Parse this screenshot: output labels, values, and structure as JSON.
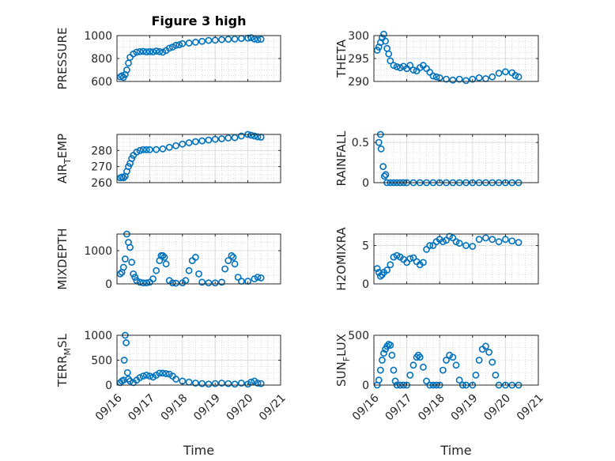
{
  "figure": {
    "title": "Figure 3 high",
    "marker_color": "#0072BD"
  },
  "chart_data": [
    {
      "type": "scatter",
      "name": "pressure",
      "title": "Figure 3 high",
      "ylabel_parts": [
        {
          "t": "PRESSURE"
        }
      ],
      "xlabel": "",
      "xlim": [
        0,
        5
      ],
      "ylim": [
        600,
        1000
      ],
      "yticks": [
        600,
        800,
        1000
      ],
      "xticks": [
        "09/16",
        "09/17",
        "09/18",
        "09/19",
        "09/20",
        "09/21"
      ],
      "show_xticklabels": false,
      "points": [
        [
          0.1,
          640
        ],
        [
          0.15,
          650
        ],
        [
          0.2,
          635
        ],
        [
          0.25,
          660
        ],
        [
          0.3,
          700
        ],
        [
          0.35,
          760
        ],
        [
          0.4,
          810
        ],
        [
          0.5,
          840
        ],
        [
          0.6,
          855
        ],
        [
          0.7,
          860
        ],
        [
          0.8,
          862
        ],
        [
          0.9,
          858
        ],
        [
          1.0,
          860
        ],
        [
          1.1,
          858
        ],
        [
          1.2,
          865
        ],
        [
          1.3,
          860
        ],
        [
          1.4,
          855
        ],
        [
          1.5,
          870
        ],
        [
          1.6,
          890
        ],
        [
          1.7,
          900
        ],
        [
          1.8,
          915
        ],
        [
          1.9,
          920
        ],
        [
          2.0,
          930
        ],
        [
          2.2,
          935
        ],
        [
          2.4,
          942
        ],
        [
          2.6,
          950
        ],
        [
          2.8,
          958
        ],
        [
          3.0,
          960
        ],
        [
          3.2,
          965
        ],
        [
          3.4,
          968
        ],
        [
          3.6,
          970
        ],
        [
          3.8,
          975
        ],
        [
          4.0,
          978
        ],
        [
          4.1,
          982
        ],
        [
          4.2,
          970
        ],
        [
          4.3,
          965
        ],
        [
          4.4,
          968
        ]
      ]
    },
    {
      "type": "scatter",
      "name": "theta",
      "title": "",
      "ylabel_parts": [
        {
          "t": "THETA"
        }
      ],
      "xlabel": "",
      "xlim": [
        0,
        5
      ],
      "ylim": [
        290,
        300
      ],
      "yticks": [
        290,
        295,
        300
      ],
      "xticks": [
        "09/16",
        "09/17",
        "09/18",
        "09/19",
        "09/20",
        "09/21"
      ],
      "show_xticklabels": false,
      "points": [
        [
          0.1,
          296.8
        ],
        [
          0.15,
          297.5
        ],
        [
          0.2,
          298.5
        ],
        [
          0.25,
          299.5
        ],
        [
          0.3,
          300.3
        ],
        [
          0.35,
          298.8
        ],
        [
          0.4,
          297.2
        ],
        [
          0.45,
          296.0
        ],
        [
          0.5,
          294.5
        ],
        [
          0.6,
          293.5
        ],
        [
          0.7,
          293.2
        ],
        [
          0.8,
          293.0
        ],
        [
          0.9,
          293.3
        ],
        [
          1.0,
          292.8
        ],
        [
          1.1,
          293.5
        ],
        [
          1.2,
          292.5
        ],
        [
          1.3,
          292.3
        ],
        [
          1.4,
          293.0
        ],
        [
          1.5,
          293.5
        ],
        [
          1.6,
          292.8
        ],
        [
          1.7,
          292.0
        ],
        [
          1.8,
          291.2
        ],
        [
          1.9,
          291.0
        ],
        [
          2.0,
          290.8
        ],
        [
          2.2,
          290.5
        ],
        [
          2.4,
          290.3
        ],
        [
          2.6,
          290.5
        ],
        [
          2.8,
          290.2
        ],
        [
          3.0,
          290.5
        ],
        [
          3.2,
          290.8
        ],
        [
          3.4,
          290.6
        ],
        [
          3.6,
          291.0
        ],
        [
          3.8,
          291.8
        ],
        [
          4.0,
          292.1
        ],
        [
          4.2,
          291.9
        ],
        [
          4.3,
          291.3
        ],
        [
          4.4,
          291.0
        ]
      ]
    },
    {
      "type": "scatter",
      "name": "air_temp",
      "title": "",
      "ylabel_parts": [
        {
          "t": "AIR"
        },
        {
          "t": "T",
          "sub": true
        },
        {
          "t": "EMP"
        }
      ],
      "xlabel": "",
      "xlim": [
        0,
        5
      ],
      "ylim": [
        260,
        290
      ],
      "yticks": [
        260,
        270,
        280
      ],
      "xticks": [
        "09/16",
        "09/17",
        "09/18",
        "09/19",
        "09/20",
        "09/21"
      ],
      "show_xticklabels": false,
      "points": [
        [
          0.1,
          263
        ],
        [
          0.15,
          263.5
        ],
        [
          0.2,
          263
        ],
        [
          0.25,
          264
        ],
        [
          0.3,
          267
        ],
        [
          0.35,
          270
        ],
        [
          0.4,
          272
        ],
        [
          0.45,
          275
        ],
        [
          0.5,
          277
        ],
        [
          0.6,
          279
        ],
        [
          0.7,
          280
        ],
        [
          0.8,
          280.5
        ],
        [
          0.9,
          280.5
        ],
        [
          1.0,
          280.5
        ],
        [
          1.2,
          280.6
        ],
        [
          1.4,
          281
        ],
        [
          1.6,
          282
        ],
        [
          1.8,
          283
        ],
        [
          2.0,
          284
        ],
        [
          2.2,
          284.8
        ],
        [
          2.4,
          285.5
        ],
        [
          2.6,
          286
        ],
        [
          2.8,
          286.5
        ],
        [
          3.0,
          287
        ],
        [
          3.2,
          287.3
        ],
        [
          3.4,
          287.8
        ],
        [
          3.6,
          288
        ],
        [
          3.8,
          289
        ],
        [
          4.0,
          290
        ],
        [
          4.1,
          289.5
        ],
        [
          4.2,
          289
        ],
        [
          4.3,
          288.5
        ],
        [
          4.4,
          288.3
        ]
      ]
    },
    {
      "type": "scatter",
      "name": "rainfall",
      "title": "",
      "ylabel_parts": [
        {
          "t": "RAINFALL"
        }
      ],
      "xlabel": "",
      "xlim": [
        0,
        5
      ],
      "ylim": [
        0,
        0.6
      ],
      "yticks": [
        0,
        0.5
      ],
      "xticks": [
        "09/16",
        "09/17",
        "09/18",
        "09/19",
        "09/20",
        "09/21"
      ],
      "show_xticklabels": false,
      "points": [
        [
          0.15,
          0.5
        ],
        [
          0.2,
          0.6
        ],
        [
          0.22,
          0.42
        ],
        [
          0.28,
          0.2
        ],
        [
          0.32,
          0.08
        ],
        [
          0.36,
          0.1
        ],
        [
          0.4,
          0.0
        ],
        [
          0.5,
          0.0
        ],
        [
          0.6,
          0.0
        ],
        [
          0.7,
          0.0
        ],
        [
          0.8,
          0.0
        ],
        [
          0.9,
          0.0
        ],
        [
          1.0,
          0.0
        ],
        [
          1.2,
          0.0
        ],
        [
          1.4,
          0.0
        ],
        [
          1.6,
          0.0
        ],
        [
          1.8,
          0.0
        ],
        [
          2.0,
          0.0
        ],
        [
          2.2,
          0.0
        ],
        [
          2.4,
          0.0
        ],
        [
          2.6,
          0.0
        ],
        [
          2.8,
          0.0
        ],
        [
          3.0,
          0.0
        ],
        [
          3.2,
          0.0
        ],
        [
          3.4,
          0.0
        ],
        [
          3.6,
          0.0
        ],
        [
          3.8,
          0.0
        ],
        [
          4.0,
          0.0
        ],
        [
          4.2,
          0.0
        ],
        [
          4.4,
          0.0
        ]
      ]
    },
    {
      "type": "scatter",
      "name": "mixdepth",
      "title": "",
      "ylabel_parts": [
        {
          "t": "MIXDEPTH"
        }
      ],
      "xlabel": "",
      "xlim": [
        0,
        5
      ],
      "ylim": [
        0,
        1500
      ],
      "yticks": [
        0,
        1000
      ],
      "xticks": [
        "09/16",
        "09/17",
        "09/18",
        "09/19",
        "09/20",
        "09/21"
      ],
      "show_xticklabels": false,
      "points": [
        [
          0.1,
          300
        ],
        [
          0.15,
          350
        ],
        [
          0.2,
          500
        ],
        [
          0.25,
          750
        ],
        [
          0.3,
          1500
        ],
        [
          0.35,
          1250
        ],
        [
          0.4,
          1100
        ],
        [
          0.45,
          650
        ],
        [
          0.5,
          300
        ],
        [
          0.55,
          200
        ],
        [
          0.6,
          100
        ],
        [
          0.7,
          50
        ],
        [
          0.8,
          30
        ],
        [
          0.9,
          30
        ],
        [
          1.0,
          50
        ],
        [
          1.1,
          150
        ],
        [
          1.2,
          400
        ],
        [
          1.3,
          700
        ],
        [
          1.35,
          850
        ],
        [
          1.4,
          850
        ],
        [
          1.45,
          800
        ],
        [
          1.5,
          600
        ],
        [
          1.6,
          100
        ],
        [
          1.7,
          30
        ],
        [
          1.8,
          20
        ],
        [
          2.0,
          30
        ],
        [
          2.1,
          100
        ],
        [
          2.2,
          400
        ],
        [
          2.3,
          700
        ],
        [
          2.4,
          800
        ],
        [
          2.5,
          300
        ],
        [
          2.6,
          50
        ],
        [
          2.8,
          30
        ],
        [
          3.0,
          30
        ],
        [
          3.2,
          50
        ],
        [
          3.3,
          450
        ],
        [
          3.4,
          700
        ],
        [
          3.5,
          850
        ],
        [
          3.55,
          800
        ],
        [
          3.6,
          600
        ],
        [
          3.7,
          200
        ],
        [
          3.8,
          80
        ],
        [
          4.0,
          80
        ],
        [
          4.2,
          150
        ],
        [
          4.3,
          200
        ],
        [
          4.4,
          180
        ]
      ]
    },
    {
      "type": "scatter",
      "name": "h2omixra",
      "title": "",
      "ylabel_parts": [
        {
          "t": "H2OMIXRA"
        }
      ],
      "xlabel": "",
      "xlim": [
        0,
        5
      ],
      "ylim": [
        0,
        6.5
      ],
      "yticks": [
        0,
        5
      ],
      "xticks": [
        "09/16",
        "09/17",
        "09/18",
        "09/19",
        "09/20",
        "09/21"
      ],
      "show_xticklabels": false,
      "points": [
        [
          0.1,
          2
        ],
        [
          0.15,
          1.5
        ],
        [
          0.2,
          1.0
        ],
        [
          0.25,
          1.2
        ],
        [
          0.3,
          1.5
        ],
        [
          0.4,
          1.8
        ],
        [
          0.5,
          2.5
        ],
        [
          0.6,
          3.5
        ],
        [
          0.7,
          3.7
        ],
        [
          0.8,
          3.5
        ],
        [
          0.9,
          3.2
        ],
        [
          1.0,
          2.8
        ],
        [
          1.1,
          3.3
        ],
        [
          1.2,
          3.4
        ],
        [
          1.3,
          2.9
        ],
        [
          1.4,
          2.5
        ],
        [
          1.5,
          2.8
        ],
        [
          1.6,
          4.5
        ],
        [
          1.7,
          5.0
        ],
        [
          1.8,
          5.0
        ],
        [
          1.9,
          5.5
        ],
        [
          2.0,
          5.8
        ],
        [
          2.1,
          5.5
        ],
        [
          2.2,
          5.7
        ],
        [
          2.3,
          6.2
        ],
        [
          2.4,
          6.0
        ],
        [
          2.5,
          5.5
        ],
        [
          2.6,
          5.3
        ],
        [
          2.8,
          5.0
        ],
        [
          3.0,
          4.9
        ],
        [
          3.2,
          5.8
        ],
        [
          3.4,
          6.0
        ],
        [
          3.6,
          5.8
        ],
        [
          3.8,
          5.5
        ],
        [
          4.0,
          5.8
        ],
        [
          4.2,
          5.6
        ],
        [
          4.4,
          5.4
        ]
      ]
    },
    {
      "type": "scatter",
      "name": "terr_msl",
      "title": "",
      "ylabel_parts": [
        {
          "t": "TERR"
        },
        {
          "t": "M",
          "sub": true
        },
        {
          "t": "SL"
        }
      ],
      "xlabel": "Time",
      "xlim": [
        0,
        5
      ],
      "ylim": [
        0,
        1000
      ],
      "yticks": [
        0,
        500,
        1000
      ],
      "xticks": [
        "09/16",
        "09/17",
        "09/18",
        "09/19",
        "09/20",
        "09/21"
      ],
      "show_xticklabels": true,
      "points": [
        [
          0.1,
          50
        ],
        [
          0.15,
          80
        ],
        [
          0.2,
          100
        ],
        [
          0.22,
          500
        ],
        [
          0.25,
          1000
        ],
        [
          0.28,
          850
        ],
        [
          0.32,
          250
        ],
        [
          0.35,
          120
        ],
        [
          0.4,
          80
        ],
        [
          0.5,
          50
        ],
        [
          0.6,
          100
        ],
        [
          0.7,
          150
        ],
        [
          0.8,
          180
        ],
        [
          0.9,
          200
        ],
        [
          1.0,
          180
        ],
        [
          1.1,
          160
        ],
        [
          1.2,
          200
        ],
        [
          1.3,
          240
        ],
        [
          1.4,
          240
        ],
        [
          1.5,
          230
        ],
        [
          1.6,
          220
        ],
        [
          1.7,
          180
        ],
        [
          1.8,
          120
        ],
        [
          2.0,
          80
        ],
        [
          2.2,
          60
        ],
        [
          2.4,
          40
        ],
        [
          2.6,
          30
        ],
        [
          2.8,
          20
        ],
        [
          3.0,
          30
        ],
        [
          3.2,
          40
        ],
        [
          3.4,
          30
        ],
        [
          3.6,
          20
        ],
        [
          3.8,
          40
        ],
        [
          4.0,
          20
        ],
        [
          4.1,
          60
        ],
        [
          4.2,
          80
        ],
        [
          4.3,
          40
        ],
        [
          4.4,
          30
        ]
      ]
    },
    {
      "type": "scatter",
      "name": "sun_flux",
      "title": "",
      "ylabel_parts": [
        {
          "t": "SUN"
        },
        {
          "t": "F",
          "sub": true
        },
        {
          "t": "LUX"
        }
      ],
      "xlabel": "Time",
      "xlim": [
        0,
        5
      ],
      "ylim": [
        0,
        500
      ],
      "yticks": [
        0,
        500
      ],
      "xticks": [
        "09/16",
        "09/17",
        "09/18",
        "09/19",
        "09/20",
        "09/21"
      ],
      "show_xticklabels": true,
      "points": [
        [
          0.1,
          0
        ],
        [
          0.15,
          50
        ],
        [
          0.2,
          150
        ],
        [
          0.25,
          250
        ],
        [
          0.3,
          320
        ],
        [
          0.35,
          360
        ],
        [
          0.4,
          390
        ],
        [
          0.45,
          410
        ],
        [
          0.5,
          400
        ],
        [
          0.55,
          300
        ],
        [
          0.6,
          150
        ],
        [
          0.65,
          40
        ],
        [
          0.7,
          0
        ],
        [
          0.8,
          0
        ],
        [
          0.9,
          0
        ],
        [
          1.0,
          0
        ],
        [
          1.1,
          100
        ],
        [
          1.2,
          200
        ],
        [
          1.3,
          280
        ],
        [
          1.35,
          300
        ],
        [
          1.4,
          280
        ],
        [
          1.5,
          180
        ],
        [
          1.6,
          40
        ],
        [
          1.7,
          0
        ],
        [
          1.8,
          0
        ],
        [
          1.9,
          0
        ],
        [
          2.0,
          0
        ],
        [
          2.1,
          150
        ],
        [
          2.2,
          250
        ],
        [
          2.3,
          300
        ],
        [
          2.4,
          280
        ],
        [
          2.5,
          200
        ],
        [
          2.6,
          50
        ],
        [
          2.7,
          0
        ],
        [
          2.8,
          0
        ],
        [
          3.0,
          0
        ],
        [
          3.1,
          100
        ],
        [
          3.2,
          250
        ],
        [
          3.3,
          360
        ],
        [
          3.4,
          390
        ],
        [
          3.5,
          330
        ],
        [
          3.6,
          230
        ],
        [
          3.7,
          100
        ],
        [
          3.8,
          0
        ],
        [
          4.0,
          0
        ],
        [
          4.2,
          0
        ],
        [
          4.4,
          0
        ]
      ]
    }
  ]
}
